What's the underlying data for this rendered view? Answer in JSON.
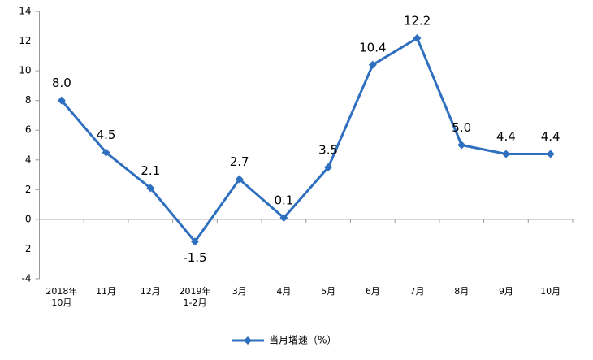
{
  "chart_data": {
    "type": "line",
    "categories": [
      "2018年\n10月",
      "11月",
      "12月",
      "2019年\n1-2月",
      "3月",
      "4月",
      "5月",
      "6月",
      "7月",
      "8月",
      "9月",
      "10月"
    ],
    "series": [
      {
        "name": "当月增速（%）",
        "color": "#2f6fbf",
        "values": [
          8.0,
          4.5,
          2.1,
          -1.5,
          2.7,
          0.1,
          3.5,
          10.4,
          12.2,
          5.0,
          4.4,
          4.4
        ],
        "value_labels": [
          "8.0",
          "4.5",
          "2.1",
          "-1.5",
          "2.7",
          "0.1",
          "3.5",
          "10.4",
          "12.2",
          "5.0",
          "4.4",
          "4.4"
        ]
      }
    ],
    "ylim": [
      -4,
      14
    ],
    "yticks": [
      -4,
      -2,
      0,
      2,
      4,
      6,
      8,
      10,
      12,
      14
    ],
    "legend": "bottom"
  }
}
